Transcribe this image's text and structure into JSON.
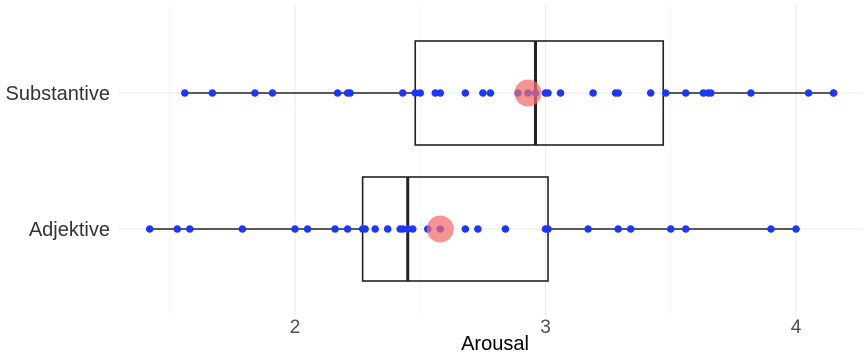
{
  "chart_data": {
    "type": "boxplot",
    "orientation": "horizontal",
    "title": "",
    "xlabel": "Arousal",
    "ylabel": "",
    "xlim": [
      1.3,
      4.25
    ],
    "xticks": [
      2,
      3,
      4
    ],
    "grid": true,
    "legend": "none",
    "categories": [
      "Substantive",
      "Adjektive"
    ],
    "colors": {
      "points": "#1a36ff",
      "mean_marker": "#f26b6b",
      "box_line": "#222222"
    },
    "series": [
      {
        "category": "Substantive",
        "whisker_low": 1.56,
        "q1": 2.48,
        "median": 2.96,
        "q3": 3.47,
        "whisker_high": 4.15,
        "mean": 2.93,
        "points": [
          1.56,
          1.67,
          1.84,
          1.91,
          2.17,
          2.21,
          2.22,
          2.43,
          2.48,
          2.5,
          2.56,
          2.58,
          2.68,
          2.75,
          2.78,
          2.89,
          2.93,
          2.96,
          3.0,
          3.01,
          3.06,
          3.19,
          3.28,
          3.29,
          3.42,
          3.48,
          3.56,
          3.63,
          3.65,
          3.66,
          3.82,
          4.05,
          4.15,
          4.15
        ]
      },
      {
        "category": "Adjektive",
        "whisker_low": 1.42,
        "q1": 2.27,
        "median": 2.45,
        "q3": 3.01,
        "whisker_high": 4.0,
        "mean": 2.58,
        "points": [
          1.42,
          1.53,
          1.58,
          1.79,
          2.0,
          2.05,
          2.16,
          2.21,
          2.27,
          2.28,
          2.32,
          2.37,
          2.42,
          2.43,
          2.45,
          2.47,
          2.53,
          2.58,
          2.68,
          2.73,
          2.84,
          3.0,
          3.01,
          3.17,
          3.29,
          3.34,
          3.5,
          3.56,
          3.9,
          4.0
        ]
      }
    ]
  }
}
